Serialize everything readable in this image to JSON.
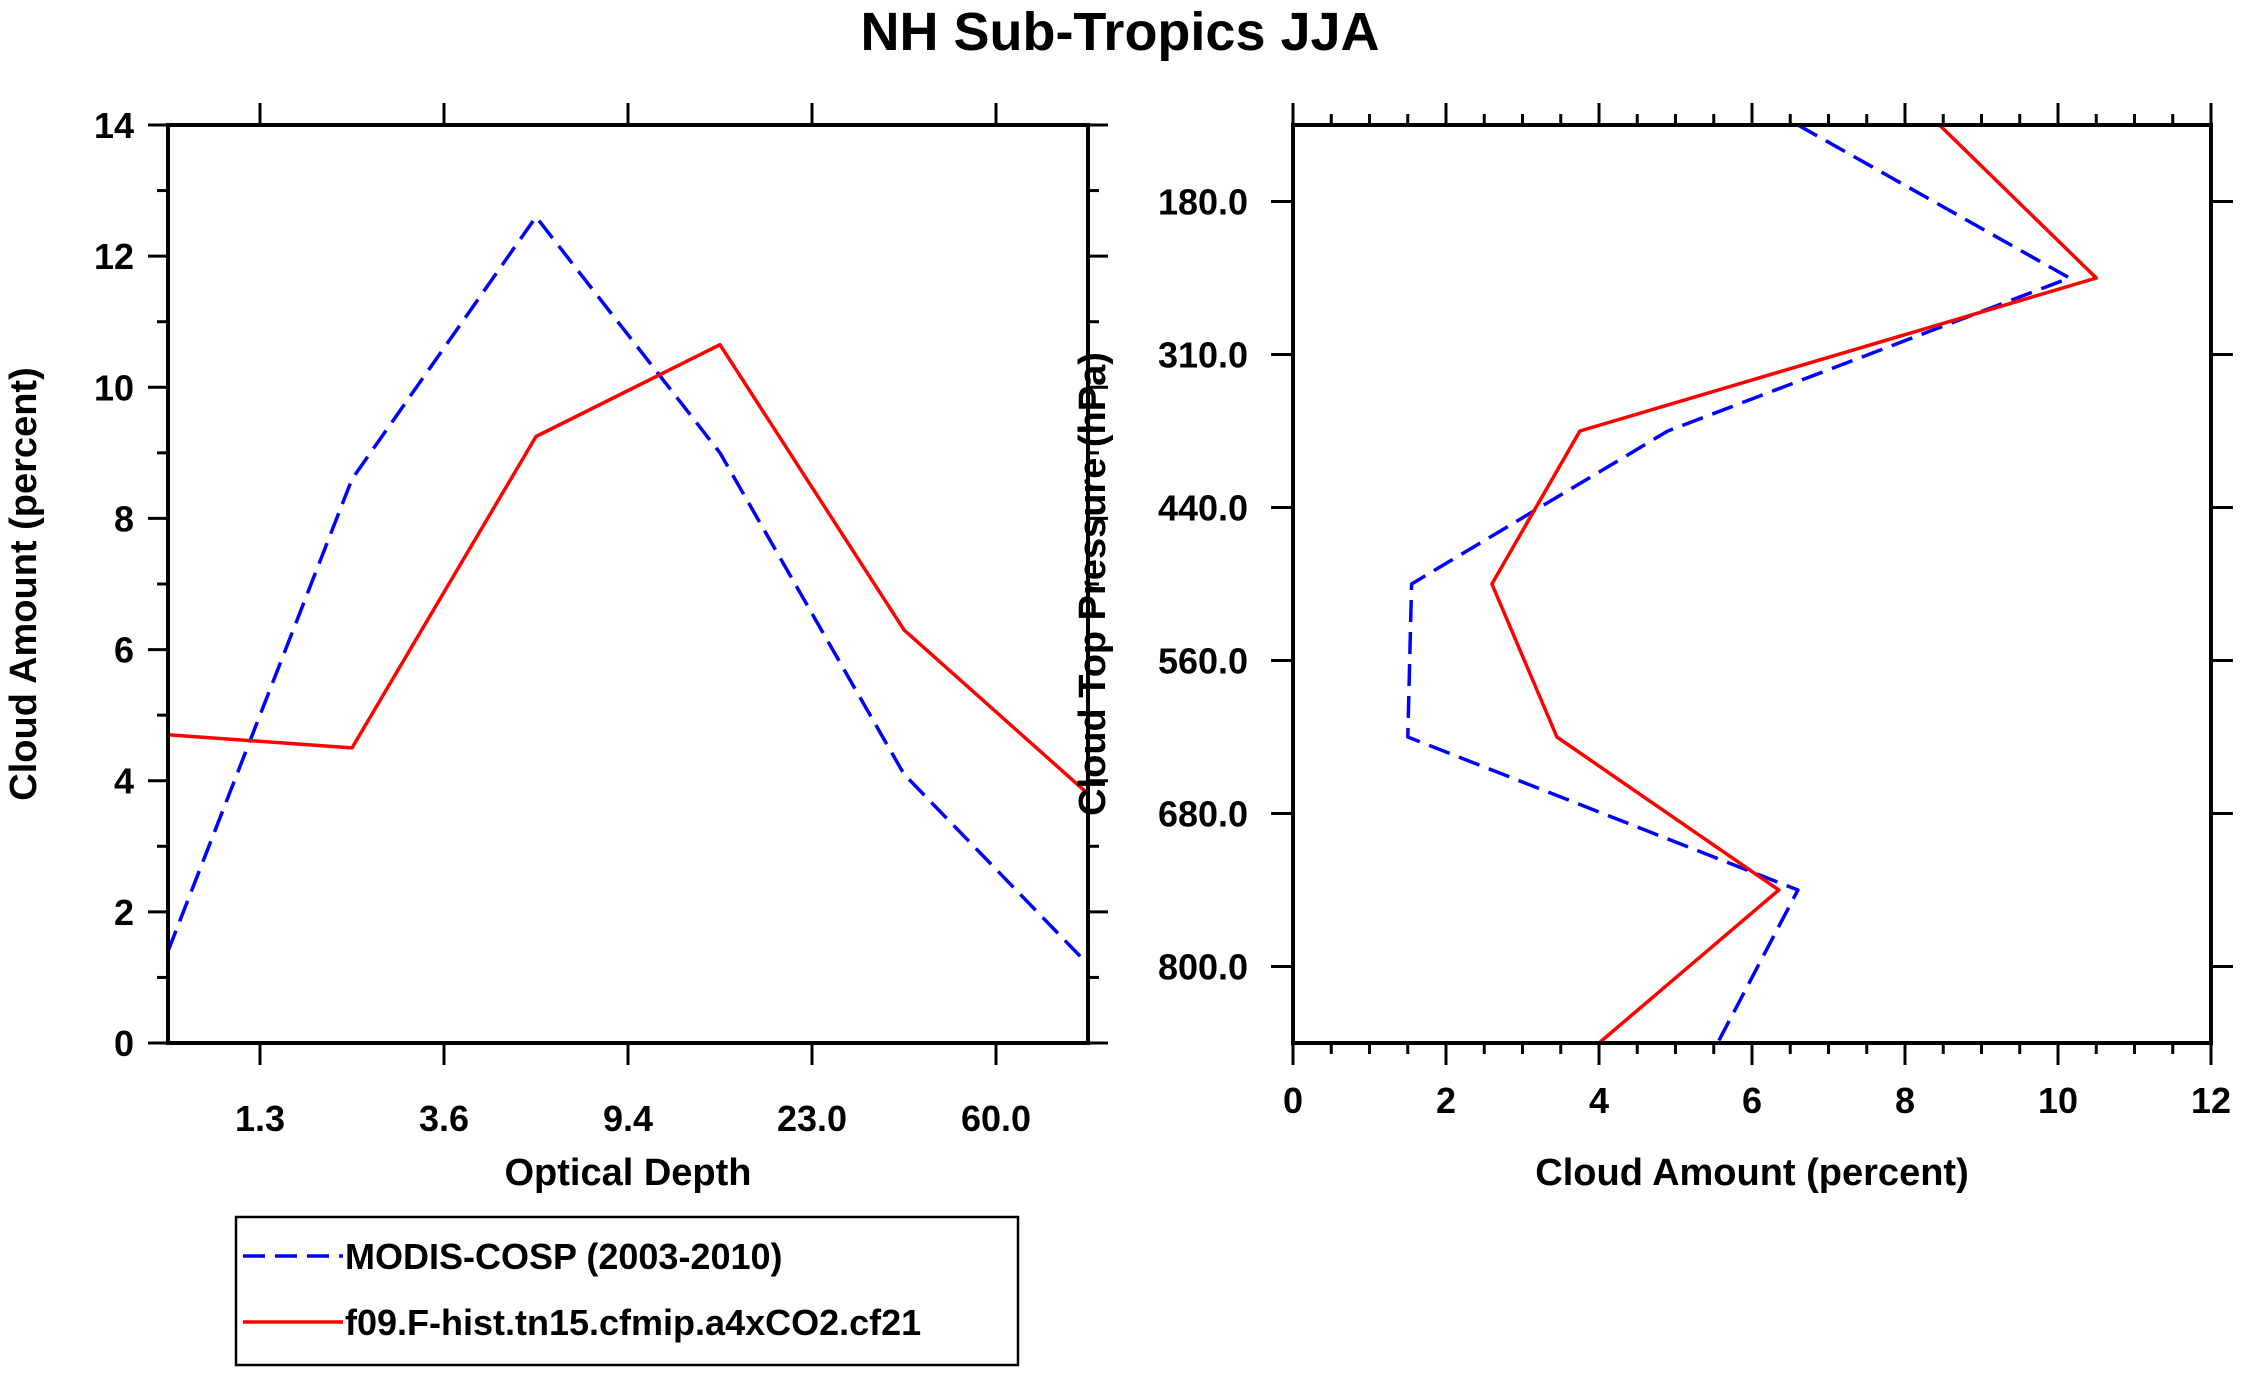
{
  "figure_title": "NH Sub-Tropics JJA",
  "colors": {
    "modis": "#0000ff",
    "model": "#ff0000"
  },
  "legend": {
    "items": [
      {
        "label": "MODIS-COSP (2003-2010)",
        "color": "#0000ff",
        "dash": true
      },
      {
        "label": "f09.F-hist.tn15.cfmip.a4xCO2.cf21",
        "color": "#ff0000",
        "dash": false
      }
    ]
  },
  "chart_data": [
    {
      "type": "line",
      "xlabel": "Optical Depth",
      "ylabel": "Cloud Amount (percent)",
      "ylim": [
        0,
        14
      ],
      "yticks": [
        "0",
        "2",
        "4",
        "6",
        "8",
        "10",
        "12",
        "14"
      ],
      "xlim": [
        0,
        5
      ],
      "x": [
        0,
        1,
        2,
        3,
        4,
        5
      ],
      "xtick_positions": [
        0.5,
        1.5,
        2.5,
        3.5,
        4.5
      ],
      "xtick_labels": [
        "1.3",
        "3.6",
        "9.4",
        "23.0",
        "60.0"
      ],
      "series": [
        {
          "name": "MODIS-COSP (2003-2010)",
          "values": [
            1.4,
            8.6,
            12.6,
            9.0,
            4.1,
            1.2
          ]
        },
        {
          "name": "f09.F-hist.tn15.cfmip.a4xCO2.cf21",
          "values": [
            4.7,
            4.5,
            9.25,
            10.65,
            6.3,
            3.8
          ]
        }
      ]
    },
    {
      "type": "line",
      "xlabel": "Cloud Amount (percent)",
      "ylabel": "Cloud Top Pressure (hPa)",
      "xlim": [
        0,
        12
      ],
      "xticks": [
        "0",
        "2",
        "4",
        "6",
        "8",
        "10",
        "12"
      ],
      "ylim": [
        120,
        840
      ],
      "y_inverted": true,
      "yticks": [
        180,
        300,
        420,
        540,
        660,
        780
      ],
      "ytick_labels": [
        "180.0",
        "310.0",
        "440.0",
        "560.0",
        "680.0",
        "800.0"
      ],
      "y": [
        120,
        240,
        360,
        480,
        600,
        720,
        840
      ],
      "series": [
        {
          "name": "MODIS-COSP (2003-2010)",
          "values": [
            6.6,
            10.15,
            4.9,
            1.55,
            1.5,
            6.6,
            5.55
          ]
        },
        {
          "name": "f09.F-hist.tn15.cfmip.a4xCO2.cf21",
          "values": [
            8.45,
            10.5,
            3.75,
            2.6,
            3.45,
            6.35,
            4.0
          ]
        }
      ]
    }
  ]
}
